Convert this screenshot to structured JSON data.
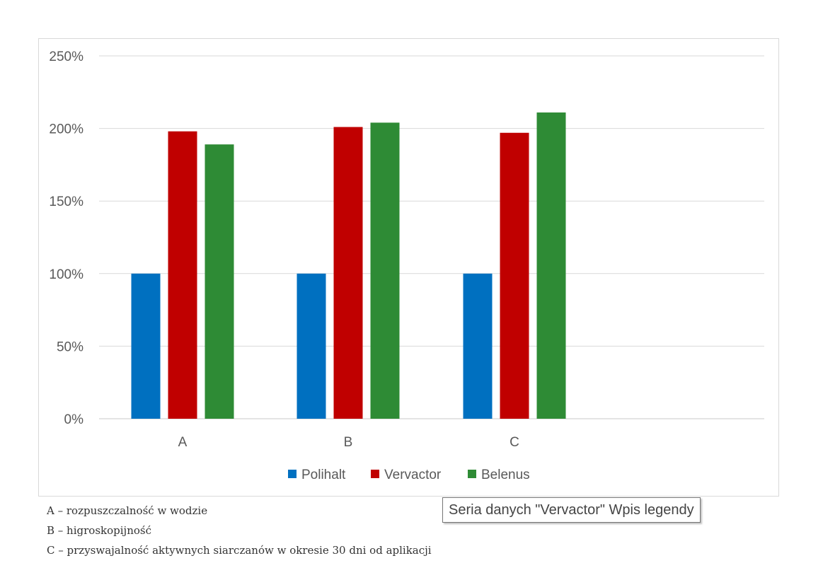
{
  "chart_data": {
    "type": "bar",
    "categories": [
      "A",
      "B",
      "C"
    ],
    "series": [
      {
        "name": "Polihalt",
        "values": [
          100,
          100,
          100
        ],
        "color": "#0070c0"
      },
      {
        "name": "Vervactor",
        "values": [
          198,
          201,
          197
        ],
        "color": "#c00000"
      },
      {
        "name": "Belenus",
        "values": [
          189,
          204,
          211
        ],
        "color": "#2e8b35"
      }
    ],
    "yticks": [
      "0%",
      "50%",
      "100%",
      "150%",
      "200%",
      "250%"
    ],
    "ylim": [
      0,
      250
    ],
    "y_unit": "%",
    "grid": true,
    "legend_position": "bottom"
  },
  "notes": [
    "A – rozpuszczalność w wodzie",
    "B – higroskopijność",
    "C – przyswajalność aktywnych siarczanów w okresie 30 dni od aplikacji"
  ],
  "tooltip": "Seria danych \"Vervactor\" Wpis legendy"
}
